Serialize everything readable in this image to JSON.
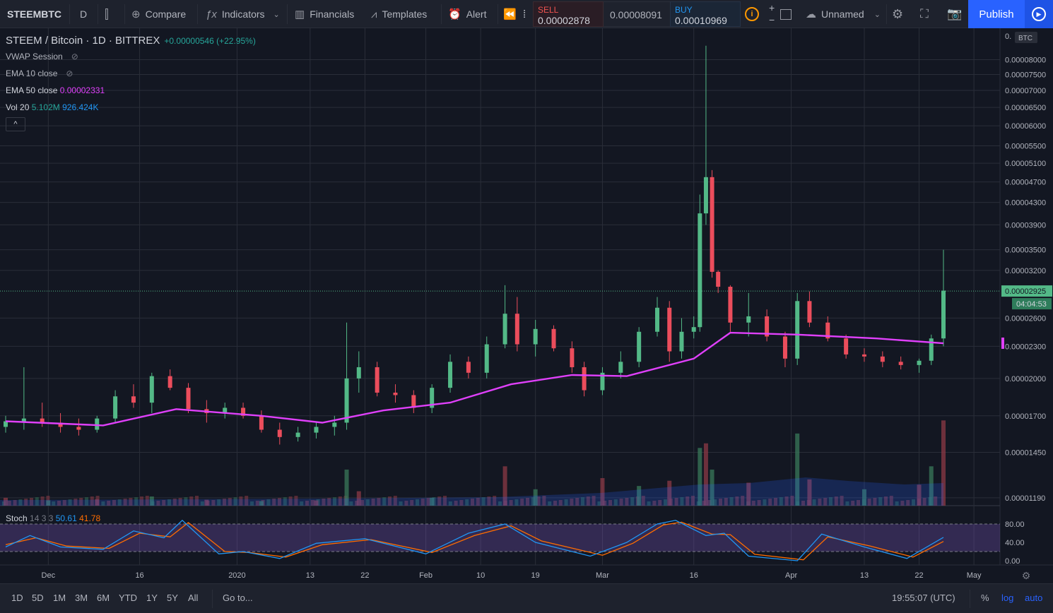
{
  "toolbar": {
    "symbol": "STEEMBTC",
    "interval": "D",
    "compare": "Compare",
    "indicators": "Indicators",
    "financials": "Financials",
    "templates": "Templates",
    "alert": "Alert",
    "sell_label": "SELL",
    "sell_price": "0.00002878",
    "mid_price": "0.00008091",
    "buy_label": "BUY",
    "buy_price": "0.00010969",
    "layout_name": "Unnamed",
    "publish": "Publish"
  },
  "legend": {
    "title": "STEEM / Bitcoin · 1D · BITTREX",
    "change": "+0.00000546 (+22.95%)",
    "vwap": "VWAP Session",
    "ema10": "EMA 10 close",
    "ema50_label": "EMA 50 close",
    "ema50_value": "0.00002331",
    "vol_label": "Vol 20",
    "vol_value1": "5.102M",
    "vol_value2": "926.424K"
  },
  "price_axis": {
    "currency": "BTC",
    "current_price": "0.00002925",
    "countdown": "04:04:53",
    "top_label": "0."
  },
  "stoch": {
    "label": "Stoch",
    "params": "14 3 3",
    "k": "50.61",
    "d": "41.78"
  },
  "bottom": {
    "ranges": [
      "1D",
      "5D",
      "1M",
      "3M",
      "6M",
      "YTD",
      "1Y",
      "5Y",
      "All"
    ],
    "goto": "Go to...",
    "time": "19:55:07 (UTC)",
    "percent": "%",
    "log": "log",
    "auto": "auto"
  },
  "colors": {
    "up": "#53b987",
    "down": "#eb4d5c",
    "ema50": "#e040fb",
    "stoch_k": "#2196f3",
    "stoch_d": "#ff6d00",
    "accent": "#2962ff"
  },
  "chart_data": {
    "type": "candlestick",
    "symbol": "STEEM / Bitcoin",
    "exchange": "BITTREX",
    "scale": "log",
    "x_dates": [
      "2019-11-24",
      "2020-04-27"
    ],
    "x_tick_labels": [
      {
        "label": "Dec",
        "date": "2019-12-01"
      },
      {
        "label": "16",
        "date": "2019-12-16"
      },
      {
        "label": "2020",
        "date": "2020-01-01"
      },
      {
        "label": "13",
        "date": "2020-01-13"
      },
      {
        "label": "22",
        "date": "2020-01-22"
      },
      {
        "label": "Feb",
        "date": "2020-02-01"
      },
      {
        "label": "10",
        "date": "2020-02-10"
      },
      {
        "label": "19",
        "date": "2020-02-19"
      },
      {
        "label": "Mar",
        "date": "2020-03-01"
      },
      {
        "label": "16",
        "date": "2020-03-16"
      },
      {
        "label": "Apr",
        "date": "2020-04-01"
      },
      {
        "label": "13",
        "date": "2020-04-13"
      },
      {
        "label": "22",
        "date": "2020-04-22"
      },
      {
        "label": "May",
        "date": "2020-05-01"
      }
    ],
    "y_tick_labels": [
      "0.00008000",
      "0.00007500",
      "0.00007000",
      "0.00006500",
      "0.00006000",
      "0.00005500",
      "0.00005100",
      "0.00004700",
      "0.00004300",
      "0.00003900",
      "0.00003500",
      "0.00003200",
      "0.00002925",
      "0.00002600",
      "0.00002300",
      "0.00002000",
      "0.00001700",
      "0.00001450",
      "0.00001190"
    ],
    "y_range": [
      1.15e-05,
      8.95e-05
    ],
    "candles": [
      {
        "date": "2019-11-24",
        "o": 1.62e-05,
        "h": 1.7e-05,
        "l": 1.58e-05,
        "c": 1.66e-05
      },
      {
        "date": "2019-11-27",
        "o": 1.66e-05,
        "h": 2.1e-05,
        "l": 1.6e-05,
        "c": 1.68e-05
      },
      {
        "date": "2019-11-30",
        "o": 1.68e-05,
        "h": 1.8e-05,
        "l": 1.62e-05,
        "c": 1.65e-05
      },
      {
        "date": "2019-12-03",
        "o": 1.65e-05,
        "h": 1.72e-05,
        "l": 1.58e-05,
        "c": 1.62e-05
      },
      {
        "date": "2019-12-06",
        "o": 1.62e-05,
        "h": 1.68e-05,
        "l": 1.56e-05,
        "c": 1.6e-05
      },
      {
        "date": "2019-12-09",
        "o": 1.6e-05,
        "h": 1.7e-05,
        "l": 1.58e-05,
        "c": 1.68e-05
      },
      {
        "date": "2019-12-12",
        "o": 1.68e-05,
        "h": 1.9e-05,
        "l": 1.65e-05,
        "c": 1.85e-05
      },
      {
        "date": "2019-12-15",
        "o": 1.85e-05,
        "h": 1.95e-05,
        "l": 1.76e-05,
        "c": 1.8e-05
      },
      {
        "date": "2019-12-18",
        "o": 1.8e-05,
        "h": 2.05e-05,
        "l": 1.72e-05,
        "c": 2.02e-05
      },
      {
        "date": "2019-12-21",
        "o": 2.02e-05,
        "h": 2.08e-05,
        "l": 1.9e-05,
        "c": 1.92e-05
      },
      {
        "date": "2019-12-24",
        "o": 1.92e-05,
        "h": 1.96e-05,
        "l": 1.72e-05,
        "c": 1.75e-05
      },
      {
        "date": "2019-12-27",
        "o": 1.75e-05,
        "h": 1.82e-05,
        "l": 1.65e-05,
        "c": 1.72e-05
      },
      {
        "date": "2019-12-30",
        "o": 1.72e-05,
        "h": 1.8e-05,
        "l": 1.68e-05,
        "c": 1.76e-05
      },
      {
        "date": "2020-01-02",
        "o": 1.76e-05,
        "h": 1.8e-05,
        "l": 1.68e-05,
        "c": 1.7e-05
      },
      {
        "date": "2020-01-05",
        "o": 1.7e-05,
        "h": 1.74e-05,
        "l": 1.58e-05,
        "c": 1.6e-05
      },
      {
        "date": "2020-01-08",
        "o": 1.6e-05,
        "h": 1.65e-05,
        "l": 1.5e-05,
        "c": 1.55e-05
      },
      {
        "date": "2020-01-11",
        "o": 1.55e-05,
        "h": 1.62e-05,
        "l": 1.52e-05,
        "c": 1.58e-05
      },
      {
        "date": "2020-01-14",
        "o": 1.58e-05,
        "h": 1.65e-05,
        "l": 1.54e-05,
        "c": 1.62e-05
      },
      {
        "date": "2020-01-17",
        "o": 1.62e-05,
        "h": 1.7e-05,
        "l": 1.56e-05,
        "c": 1.65e-05
      },
      {
        "date": "2020-01-19",
        "o": 1.65e-05,
        "h": 2.55e-05,
        "l": 1.6e-05,
        "c": 2e-05
      },
      {
        "date": "2020-01-21",
        "o": 2e-05,
        "h": 2.25e-05,
        "l": 1.88e-05,
        "c": 2.1e-05
      },
      {
        "date": "2020-01-24",
        "o": 2.1e-05,
        "h": 2.15e-05,
        "l": 1.85e-05,
        "c": 1.88e-05
      },
      {
        "date": "2020-01-27",
        "o": 1.88e-05,
        "h": 1.95e-05,
        "l": 1.8e-05,
        "c": 1.86e-05
      },
      {
        "date": "2020-01-30",
        "o": 1.86e-05,
        "h": 1.9e-05,
        "l": 1.72e-05,
        "c": 1.76e-05
      },
      {
        "date": "2020-02-02",
        "o": 1.76e-05,
        "h": 1.95e-05,
        "l": 1.72e-05,
        "c": 1.92e-05
      },
      {
        "date": "2020-02-05",
        "o": 1.92e-05,
        "h": 2.22e-05,
        "l": 1.88e-05,
        "c": 2.15e-05
      },
      {
        "date": "2020-02-08",
        "o": 2.15e-05,
        "h": 2.2e-05,
        "l": 2e-05,
        "c": 2.05e-05
      },
      {
        "date": "2020-02-11",
        "o": 2.05e-05,
        "h": 2.4e-05,
        "l": 2e-05,
        "c": 2.32e-05
      },
      {
        "date": "2020-02-14",
        "o": 2.32e-05,
        "h": 3e-05,
        "l": 2.28e-05,
        "c": 2.65e-05
      },
      {
        "date": "2020-02-16",
        "o": 2.65e-05,
        "h": 2.85e-05,
        "l": 2.25e-05,
        "c": 2.32e-05
      },
      {
        "date": "2020-02-19",
        "o": 2.32e-05,
        "h": 2.58e-05,
        "l": 2.2e-05,
        "c": 2.48e-05
      },
      {
        "date": "2020-02-22",
        "o": 2.48e-05,
        "h": 2.52e-05,
        "l": 2.25e-05,
        "c": 2.28e-05
      },
      {
        "date": "2020-02-25",
        "o": 2.28e-05,
        "h": 2.35e-05,
        "l": 2.05e-05,
        "c": 2.1e-05
      },
      {
        "date": "2020-02-27",
        "o": 2.1e-05,
        "h": 2.15e-05,
        "l": 1.85e-05,
        "c": 1.9e-05
      },
      {
        "date": "2020-03-01",
        "o": 1.9e-05,
        "h": 2.1e-05,
        "l": 1.86e-05,
        "c": 2.05e-05
      },
      {
        "date": "2020-03-04",
        "o": 2.05e-05,
        "h": 2.25e-05,
        "l": 2e-05,
        "c": 2.15e-05
      },
      {
        "date": "2020-03-07",
        "o": 2.15e-05,
        "h": 2.5e-05,
        "l": 2.1e-05,
        "c": 2.45e-05
      },
      {
        "date": "2020-03-10",
        "o": 2.45e-05,
        "h": 2.85e-05,
        "l": 2.4e-05,
        "c": 2.72e-05
      },
      {
        "date": "2020-03-12",
        "o": 2.72e-05,
        "h": 2.8e-05,
        "l": 2.15e-05,
        "c": 2.25e-05
      },
      {
        "date": "2020-03-14",
        "o": 2.25e-05,
        "h": 2.6e-05,
        "l": 2.18e-05,
        "c": 2.45e-05
      },
      {
        "date": "2020-03-16",
        "o": 2.45e-05,
        "h": 2.62e-05,
        "l": 2.38e-05,
        "c": 2.5e-05
      },
      {
        "date": "2020-03-17",
        "o": 2.5e-05,
        "h": 4.45e-05,
        "l": 2.45e-05,
        "c": 4.1e-05
      },
      {
        "date": "2020-03-18",
        "o": 4.1e-05,
        "h": 8.5e-05,
        "l": 3.9e-05,
        "c": 4.8e-05
      },
      {
        "date": "2020-03-19",
        "o": 4.8e-05,
        "h": 4.95e-05,
        "l": 3.1e-05,
        "c": 3.18e-05
      },
      {
        "date": "2020-03-20",
        "o": 3.18e-05,
        "h": 3.2e-05,
        "l": 2.9e-05,
        "c": 2.98e-05
      },
      {
        "date": "2020-03-22",
        "o": 2.98e-05,
        "h": 3e-05,
        "l": 2.45e-05,
        "c": 2.55e-05
      },
      {
        "date": "2020-03-25",
        "o": 2.55e-05,
        "h": 2.9e-05,
        "l": 2.4e-05,
        "c": 2.62e-05
      },
      {
        "date": "2020-03-28",
        "o": 2.62e-05,
        "h": 2.7e-05,
        "l": 2.35e-05,
        "c": 2.4e-05
      },
      {
        "date": "2020-03-31",
        "o": 2.4e-05,
        "h": 2.45e-05,
        "l": 2.1e-05,
        "c": 2.18e-05
      },
      {
        "date": "2020-04-02",
        "o": 2.18e-05,
        "h": 2.9e-05,
        "l": 2.12e-05,
        "c": 2.8e-05
      },
      {
        "date": "2020-04-04",
        "o": 2.8e-05,
        "h": 2.92e-05,
        "l": 2.5e-05,
        "c": 2.55e-05
      },
      {
        "date": "2020-04-07",
        "o": 2.55e-05,
        "h": 2.62e-05,
        "l": 2.35e-05,
        "c": 2.38e-05
      },
      {
        "date": "2020-04-10",
        "o": 2.38e-05,
        "h": 2.42e-05,
        "l": 2.18e-05,
        "c": 2.22e-05
      },
      {
        "date": "2020-04-13",
        "o": 2.22e-05,
        "h": 2.28e-05,
        "l": 2.15e-05,
        "c": 2.2e-05
      },
      {
        "date": "2020-04-16",
        "o": 2.2e-05,
        "h": 2.25e-05,
        "l": 2.1e-05,
        "c": 2.15e-05
      },
      {
        "date": "2020-04-19",
        "o": 2.15e-05,
        "h": 2.2e-05,
        "l": 2.08e-05,
        "c": 2.12e-05
      },
      {
        "date": "2020-04-22",
        "o": 2.12e-05,
        "h": 2.18e-05,
        "l": 2.05e-05,
        "c": 2.16e-05
      },
      {
        "date": "2020-04-24",
        "o": 2.16e-05,
        "h": 2.42e-05,
        "l": 2.12e-05,
        "c": 2.38e-05
      },
      {
        "date": "2020-04-26",
        "o": 2.38e-05,
        "h": 3.5e-05,
        "l": 2.3e-05,
        "c": 2.93e-05
      }
    ],
    "ema50": [
      {
        "date": "2019-11-24",
        "v": 1.66e-05
      },
      {
        "date": "2019-12-10",
        "v": 1.63e-05
      },
      {
        "date": "2019-12-22",
        "v": 1.75e-05
      },
      {
        "date": "2020-01-05",
        "v": 1.7e-05
      },
      {
        "date": "2020-01-15",
        "v": 1.65e-05
      },
      {
        "date": "2020-01-25",
        "v": 1.74e-05
      },
      {
        "date": "2020-02-05",
        "v": 1.8e-05
      },
      {
        "date": "2020-02-15",
        "v": 1.95e-05
      },
      {
        "date": "2020-02-25",
        "v": 2.03e-05
      },
      {
        "date": "2020-03-05",
        "v": 2.02e-05
      },
      {
        "date": "2020-03-16",
        "v": 2.18e-05
      },
      {
        "date": "2020-03-22",
        "v": 2.44e-05
      },
      {
        "date": "2020-04-02",
        "v": 2.42e-05
      },
      {
        "date": "2020-04-15",
        "v": 2.38e-05
      },
      {
        "date": "2020-04-26",
        "v": 2.33e-05
      }
    ],
    "volume": [
      {
        "date": "2019-11-24",
        "v": 0.12
      },
      {
        "date": "2019-12-01",
        "v": 0.08
      },
      {
        "date": "2019-12-09",
        "v": 0.1
      },
      {
        "date": "2019-12-18",
        "v": 0.14
      },
      {
        "date": "2019-12-27",
        "v": 0.09
      },
      {
        "date": "2020-01-05",
        "v": 0.07
      },
      {
        "date": "2020-01-14",
        "v": 0.08
      },
      {
        "date": "2020-01-19",
        "v": 0.55
      },
      {
        "date": "2020-01-21",
        "v": 0.22
      },
      {
        "date": "2020-02-02",
        "v": 0.12
      },
      {
        "date": "2020-02-14",
        "v": 0.6
      },
      {
        "date": "2020-02-19",
        "v": 0.25
      },
      {
        "date": "2020-03-01",
        "v": 0.42
      },
      {
        "date": "2020-03-07",
        "v": 0.3
      },
      {
        "date": "2020-03-12",
        "v": 0.38
      },
      {
        "date": "2020-03-17",
        "v": 0.88
      },
      {
        "date": "2020-03-18",
        "v": 0.95
      },
      {
        "date": "2020-03-19",
        "v": 0.55
      },
      {
        "date": "2020-03-25",
        "v": 0.35
      },
      {
        "date": "2020-04-02",
        "v": 1.1
      },
      {
        "date": "2020-04-04",
        "v": 0.4
      },
      {
        "date": "2020-04-13",
        "v": 0.25
      },
      {
        "date": "2020-04-22",
        "v": 0.32
      },
      {
        "date": "2020-04-24",
        "v": 0.6
      },
      {
        "date": "2020-04-26",
        "v": 1.3
      }
    ],
    "stochastic": {
      "y_tick_labels": [
        "80.00",
        "40.00",
        "0.00"
      ],
      "y_range": [
        0,
        100
      ],
      "bands": [
        20,
        80
      ],
      "k": [
        {
          "date": "2019-11-24",
          "v": 30
        },
        {
          "date": "2019-11-28",
          "v": 55
        },
        {
          "date": "2019-12-03",
          "v": 30
        },
        {
          "date": "2019-12-10",
          "v": 25
        },
        {
          "date": "2019-12-15",
          "v": 65
        },
        {
          "date": "2019-12-20",
          "v": 50
        },
        {
          "date": "2019-12-23",
          "v": 88
        },
        {
          "date": "2019-12-29",
          "v": 15
        },
        {
          "date": "2020-01-02",
          "v": 20
        },
        {
          "date": "2020-01-08",
          "v": 5
        },
        {
          "date": "2020-01-14",
          "v": 38
        },
        {
          "date": "2020-01-22",
          "v": 48
        },
        {
          "date": "2020-02-01",
          "v": 15
        },
        {
          "date": "2020-02-08",
          "v": 60
        },
        {
          "date": "2020-02-14",
          "v": 80
        },
        {
          "date": "2020-02-19",
          "v": 40
        },
        {
          "date": "2020-02-28",
          "v": 10
        },
        {
          "date": "2020-03-05",
          "v": 40
        },
        {
          "date": "2020-03-10",
          "v": 80
        },
        {
          "date": "2020-03-13",
          "v": 88
        },
        {
          "date": "2020-03-18",
          "v": 55
        },
        {
          "date": "2020-03-21",
          "v": 60
        },
        {
          "date": "2020-03-25",
          "v": 10
        },
        {
          "date": "2020-04-02",
          "v": 0
        },
        {
          "date": "2020-04-06",
          "v": 58
        },
        {
          "date": "2020-04-13",
          "v": 30
        },
        {
          "date": "2020-04-20",
          "v": 5
        },
        {
          "date": "2020-04-26",
          "v": 51
        }
      ],
      "d": [
        {
          "date": "2019-11-24",
          "v": 35
        },
        {
          "date": "2019-11-29",
          "v": 50
        },
        {
          "date": "2019-12-04",
          "v": 32
        },
        {
          "date": "2019-12-11",
          "v": 27
        },
        {
          "date": "2019-12-16",
          "v": 60
        },
        {
          "date": "2019-12-21",
          "v": 52
        },
        {
          "date": "2019-12-24",
          "v": 83
        },
        {
          "date": "2019-12-30",
          "v": 20
        },
        {
          "date": "2020-01-03",
          "v": 18
        },
        {
          "date": "2020-01-09",
          "v": 8
        },
        {
          "date": "2020-01-15",
          "v": 35
        },
        {
          "date": "2020-01-23",
          "v": 46
        },
        {
          "date": "2020-02-02",
          "v": 18
        },
        {
          "date": "2020-02-09",
          "v": 55
        },
        {
          "date": "2020-02-15",
          "v": 76
        },
        {
          "date": "2020-02-20",
          "v": 43
        },
        {
          "date": "2020-03-01",
          "v": 12
        },
        {
          "date": "2020-03-06",
          "v": 38
        },
        {
          "date": "2020-03-11",
          "v": 78
        },
        {
          "date": "2020-03-14",
          "v": 84
        },
        {
          "date": "2020-03-19",
          "v": 58
        },
        {
          "date": "2020-03-22",
          "v": 57
        },
        {
          "date": "2020-03-26",
          "v": 14
        },
        {
          "date": "2020-04-03",
          "v": 2
        },
        {
          "date": "2020-04-07",
          "v": 52
        },
        {
          "date": "2020-04-14",
          "v": 32
        },
        {
          "date": "2020-04-21",
          "v": 8
        },
        {
          "date": "2020-04-26",
          "v": 42
        }
      ]
    }
  }
}
